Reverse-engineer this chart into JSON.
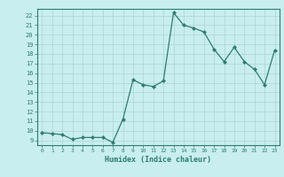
{
  "x": [
    0,
    1,
    2,
    3,
    4,
    5,
    6,
    7,
    8,
    9,
    10,
    11,
    12,
    13,
    14,
    15,
    16,
    17,
    18,
    19,
    20,
    21,
    22,
    23
  ],
  "y": [
    9.8,
    9.7,
    9.6,
    9.1,
    9.3,
    9.3,
    9.3,
    8.8,
    11.2,
    15.3,
    14.8,
    14.6,
    15.2,
    22.3,
    21.0,
    20.7,
    20.3,
    18.5,
    17.2,
    18.7,
    17.2,
    16.4,
    14.8,
    18.4
  ],
  "line_color": "#2e7d6e",
  "marker_color": "#2e7d6e",
  "bg_color": "#c8eef0",
  "grid_color": "#aed4d6",
  "xlabel": "Humidex (Indice chaleur)",
  "xlim": [
    -0.5,
    23.5
  ],
  "ylim": [
    8.5,
    22.7
  ],
  "yticks": [
    9,
    10,
    11,
    12,
    13,
    14,
    15,
    16,
    17,
    18,
    19,
    20,
    21,
    22
  ],
  "xticks": [
    0,
    1,
    2,
    3,
    4,
    5,
    6,
    7,
    8,
    9,
    10,
    11,
    12,
    13,
    14,
    15,
    16,
    17,
    18,
    19,
    20,
    21,
    22,
    23
  ],
  "tick_color": "#2e7d6e",
  "label_color": "#2e7d6e",
  "spine_color": "#2e7d6e"
}
